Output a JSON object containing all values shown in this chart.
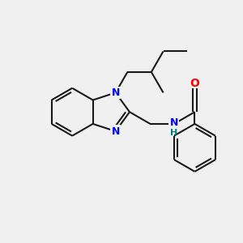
{
  "background_color": "#f0f0f0",
  "bond_color": "#1a1a1a",
  "n_color": "#0000ff",
  "o_color": "#ff0000",
  "nh_n_color": "#0000ff",
  "nh_h_color": "#008080",
  "line_width": 1.5,
  "figsize": [
    3.0,
    3.0
  ],
  "dpi": 100,
  "xlim": [
    0,
    10
  ],
  "ylim": [
    0,
    10
  ]
}
